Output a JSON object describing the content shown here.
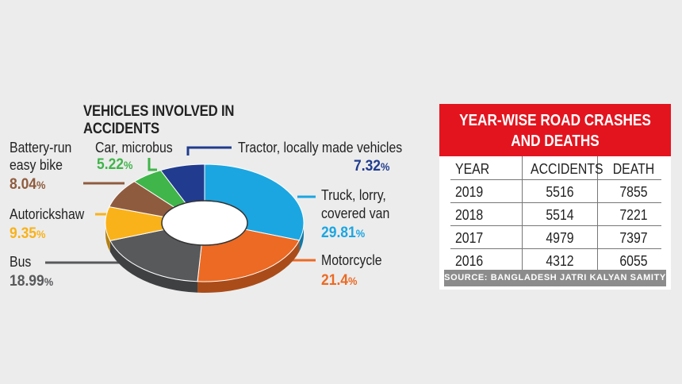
{
  "chart_data": [
    {
      "type": "pie",
      "title": "VEHICLES INVOLVED IN ACCIDENTS",
      "hole": true,
      "slices": [
        {
          "name": "Truck, lorry, covered van",
          "value": 29.81,
          "label": "29.81",
          "color": "#1ba6e2"
        },
        {
          "name": "Motorcycle",
          "value": 21.4,
          "label": "21.4",
          "color": "#ec6a23"
        },
        {
          "name": "Bus",
          "value": 18.99,
          "label": "18.99",
          "color": "#58595b"
        },
        {
          "name": "Autorickshaw",
          "value": 9.35,
          "label": "9.35",
          "color": "#f9b21a"
        },
        {
          "name": "Battery-run easy bike",
          "value": 8.04,
          "label": "8.04",
          "color": "#8f5b3e"
        },
        {
          "name": "Car, microbus",
          "value": 5.22,
          "label": "5.22",
          "color": "#3fb54a"
        },
        {
          "name": "Tractor, locally made vehicles",
          "value": 7.32,
          "label": "7.32",
          "color": "#213c8e"
        }
      ],
      "percent_sign": "%"
    },
    {
      "type": "table",
      "title_line1": "YEAR-WISE ROAD CRASHES",
      "title_line2": "AND DEATHS",
      "columns": [
        "YEAR",
        "ACCIDENTS",
        "DEATH"
      ],
      "rows": [
        [
          "2019",
          "5516",
          "7855"
        ],
        [
          "2018",
          "5514",
          "7221"
        ],
        [
          "2017",
          "4979",
          "7397"
        ],
        [
          "2016",
          "4312",
          "6055"
        ]
      ],
      "source": "SOURCE: BANGLADESH JATRI KALYAN SAMITY",
      "header_color": "#e4141e"
    }
  ],
  "labels": {
    "bus": "Bus",
    "autorickshaw": "Autorickshaw",
    "battery_line1": "Battery-run",
    "battery_line2": "easy bike",
    "car": "Car, microbus",
    "tractor": "Tractor, locally made vehicles",
    "truck_line1": "Truck, lorry,",
    "truck_line2": "covered van",
    "motorcycle": "Motorcycle"
  }
}
